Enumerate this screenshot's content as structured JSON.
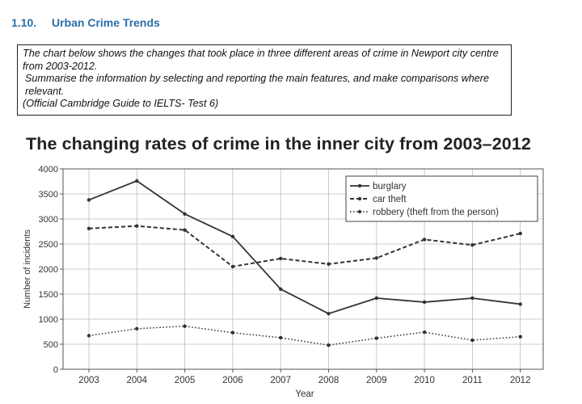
{
  "section": {
    "number": "1.10.",
    "title": "Urban Crime Trends"
  },
  "task": {
    "line1": "The chart below shows the changes that took place in three different areas of crime in Newport city centre from 2003-2012.",
    "line2": "Summarise the information by selecting and reporting the main features, and make comparisons where relevant.",
    "source": "(Official Cambridge Guide to IELTS- Test 6)"
  },
  "chart_data": {
    "type": "line",
    "title": "The changing rates of crime in the inner city from 2003–2012",
    "xlabel": "Year",
    "ylabel": "Number of incidents",
    "x": [
      "2003",
      "2004",
      "2005",
      "2006",
      "2007",
      "2008",
      "2009",
      "2010",
      "2011",
      "2012"
    ],
    "ylim": [
      0,
      4000
    ],
    "yticks": [
      0,
      500,
      1000,
      1500,
      2000,
      2500,
      3000,
      3500,
      4000
    ],
    "grid": true,
    "legend_position": "top-right",
    "series": [
      {
        "name": "burglary",
        "style": "solid",
        "color": "#333333",
        "values": [
          3380,
          3760,
          3100,
          2650,
          1600,
          1110,
          1420,
          1340,
          1420,
          1300
        ]
      },
      {
        "name": "car theft",
        "style": "dashed",
        "color": "#333333",
        "values": [
          2810,
          2860,
          2780,
          2050,
          2210,
          2100,
          2220,
          2590,
          2480,
          2710
        ]
      },
      {
        "name": "robbery (theft from the person)",
        "style": "dotted",
        "color": "#333333",
        "values": [
          670,
          810,
          860,
          730,
          630,
          480,
          620,
          740,
          580,
          650
        ]
      }
    ]
  }
}
